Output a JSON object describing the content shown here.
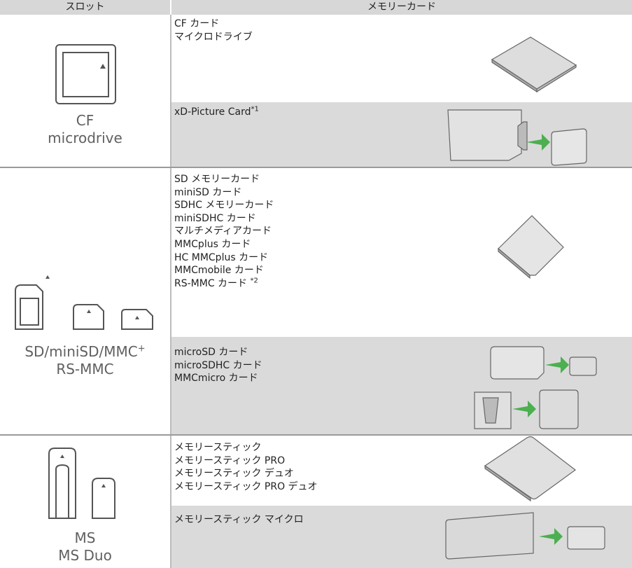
{
  "header": {
    "slot": "スロット",
    "card": "メモリーカード"
  },
  "groups": [
    {
      "slot_labels": [
        {
          "text": "CF"
        },
        {
          "text": "microdrive"
        }
      ],
      "rows": [
        {
          "lines": [
            "CF カード",
            "マイクロドライブ"
          ]
        },
        {
          "lines": [
            "xD-Picture Card"
          ],
          "note": "*1"
        }
      ]
    },
    {
      "slot_labels": [
        {
          "text": "SD/miniSD/MMC",
          "sup": "+"
        },
        {
          "text": "RS-MMC"
        }
      ],
      "rows": [
        {
          "lines": [
            "SD メモリーカード",
            "miniSD カード",
            "SDHC メモリーカード",
            "miniSDHC カード",
            "マルチメディアカード",
            "MMCplus カード",
            "HC MMCplus カード",
            "MMCmobile カード",
            "RS-MMC カード "
          ],
          "note": "*2"
        },
        {
          "lines": [
            "microSD カード",
            "microSDHC カード",
            "MMCmicro カード"
          ]
        }
      ]
    },
    {
      "slot_labels": [
        {
          "text": "MS"
        },
        {
          "text": "MS Duo"
        }
      ],
      "rows": [
        {
          "lines": [
            "メモリースティック",
            "メモリースティック PRO",
            "メモリースティック デュオ",
            "メモリースティック PRO デュオ"
          ]
        },
        {
          "lines": [
            "メモリースティック マイクロ"
          ]
        }
      ]
    }
  ]
}
